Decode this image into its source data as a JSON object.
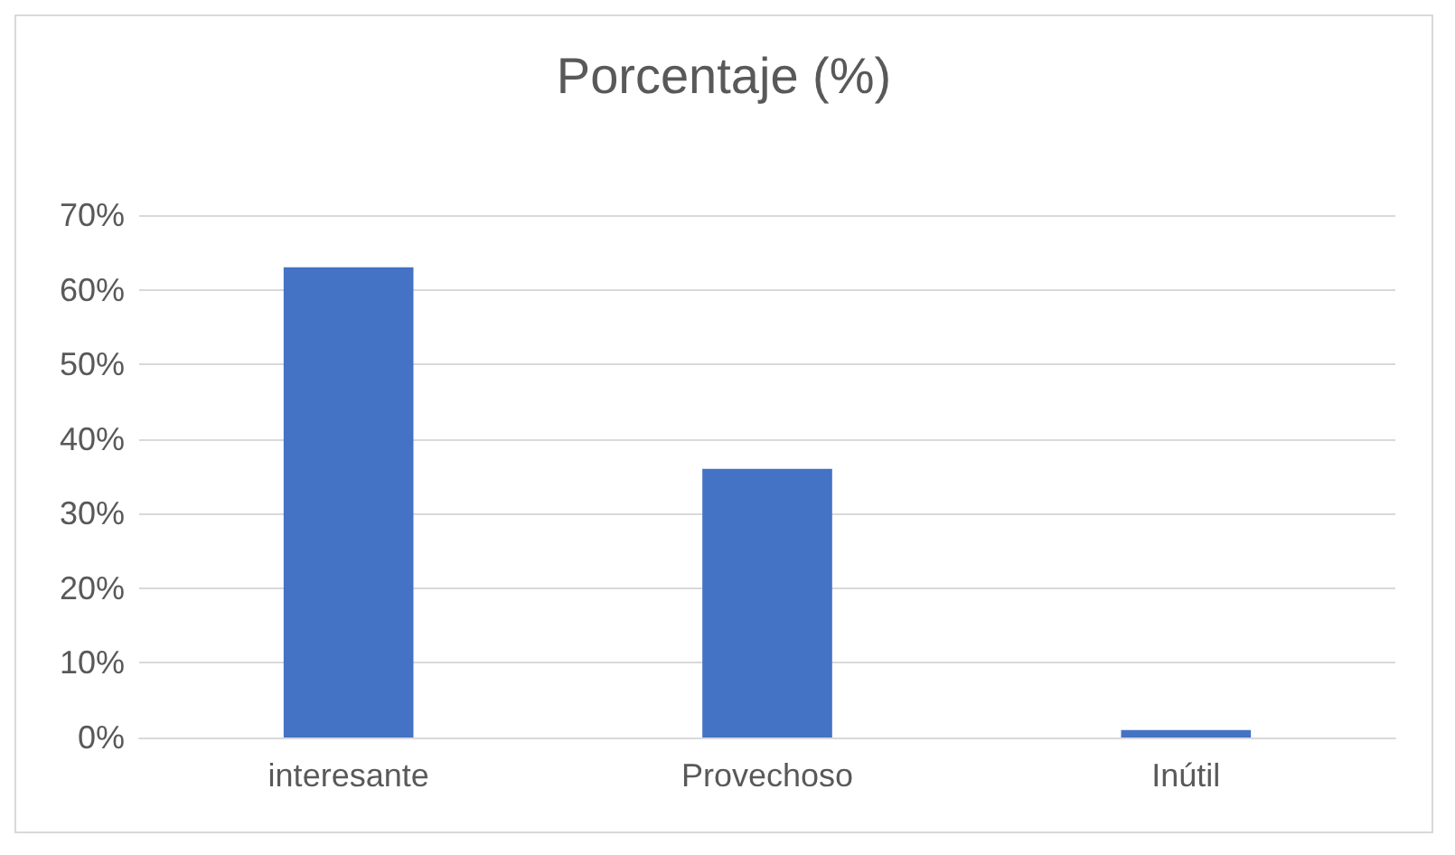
{
  "chart_data": {
    "type": "bar",
    "title": "Porcentaje (%)",
    "categories": [
      "interesante",
      "Provechoso",
      "Inútil"
    ],
    "values": [
      63,
      36,
      1
    ],
    "color": "#4472c4",
    "ylim": [
      0,
      70
    ],
    "yticks": [
      {
        "value": 0,
        "label": "0%"
      },
      {
        "value": 10,
        "label": "10%"
      },
      {
        "value": 20,
        "label": "20%"
      },
      {
        "value": 30,
        "label": "30%"
      },
      {
        "value": 40,
        "label": "40%"
      },
      {
        "value": 50,
        "label": "50%"
      },
      {
        "value": 60,
        "label": "60%"
      },
      {
        "value": 70,
        "label": "70%"
      }
    ],
    "grid": "y"
  }
}
